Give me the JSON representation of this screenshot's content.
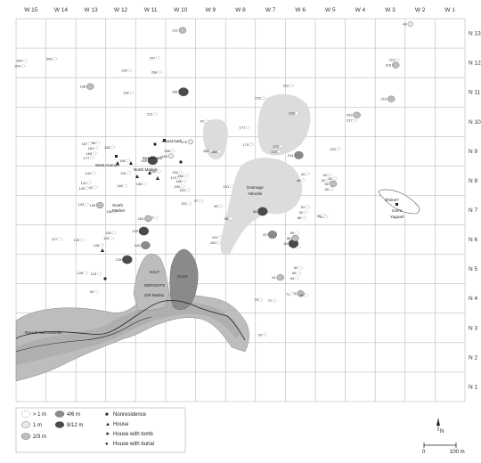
{
  "columns": [
    "W 15",
    "W 14",
    "W 13",
    "W 12",
    "W 11",
    "W 10",
    "W 9",
    "W 8",
    "W 7",
    "W 6",
    "W 5",
    "W 4",
    "W 3",
    "W 2",
    "W 1"
  ],
  "rows": [
    "N 13",
    "N 12",
    "N 11",
    "N 10",
    "N 9",
    "N 8",
    "N 7",
    "N 6",
    "N 5",
    "N 4",
    "N 3",
    "N 2",
    "N 1"
  ],
  "features": {
    "salt": "SALT",
    "deposits": "DEPOSITS",
    "zoll": "Zoll Nasha",
    "clay": "CLAY",
    "drainage1": "Drainage",
    "drainage2": "Yahoshi",
    "shrine1": "Shrine?",
    "shrine2": "Cerro",
    "shrine3": "Yagoaŕi",
    "recent": "Recent Salt Mounds",
    "west_avenue": "West Avenue",
    "north_market": "North Market",
    "south_market1": "South",
    "south_market2": "Market",
    "sweat_bath1": "sweat bath",
    "sweat_bath2": "sweat bath"
  },
  "legend": {
    "items": [
      {
        "label": "> 1 m",
        "fill": "#ffffff"
      },
      {
        "label": "1 m",
        "fill": "#e8e8e8"
      },
      {
        "label": "2/3 m",
        "fill": "#bdbdbd"
      },
      {
        "label": "4/6 m",
        "fill": "#8a8a8a"
      },
      {
        "label": "8/12 m",
        "fill": "#4a4a4a"
      }
    ],
    "symbols": [
      {
        "symbol": "■",
        "label": "Nonresidence"
      },
      {
        "symbol": "▲",
        "label": "House"
      },
      {
        "symbol": "★",
        "label": "House with tomb"
      },
      {
        "symbol": "●",
        "label": "House with burial"
      }
    ]
  },
  "north_label": "N",
  "scale": {
    "zero": "0",
    "end": "100 m"
  },
  "mounds": [
    {
      "id": "46",
      "c": "W 2",
      "r": "N 13",
      "t": 1
    },
    {
      "id": "221",
      "c": "W 10",
      "r": "N 13",
      "t": 2
    },
    {
      "id": "203",
      "c": "W 15",
      "r": "N 12",
      "t": 0
    },
    {
      "id": "204",
      "c": "W 15",
      "r": "N 12",
      "t": 0
    },
    {
      "id": "206",
      "c": "W 14",
      "r": "N 12",
      "t": 0
    },
    {
      "id": "216",
      "c": "W 3",
      "r": "N 12",
      "t": 2
    },
    {
      "id": "219",
      "c": "W 3",
      "r": "N 12",
      "t": 0
    },
    {
      "id": "207",
      "c": "W 11",
      "r": "N 12",
      "t": 0
    },
    {
      "id": "208",
      "c": "W 11",
      "r": "N 12",
      "t": 0
    },
    {
      "id": "199",
      "c": "W 12",
      "r": "N 12",
      "t": 0
    },
    {
      "id": "198",
      "c": "W 13",
      "r": "N 11",
      "t": 2
    },
    {
      "id": "192",
      "c": "W 12",
      "r": "N 11",
      "t": 0
    },
    {
      "id": "210",
      "c": "W 3",
      "r": "N 11",
      "t": 2
    },
    {
      "id": "212",
      "c": "W 6",
      "r": "N 11",
      "t": 0
    },
    {
      "id": "165",
      "c": "W 10",
      "r": "N 11",
      "t": 4
    },
    {
      "id": "215",
      "c": "W 7",
      "r": "N 11",
      "t": 0
    },
    {
      "id": "211",
      "c": "W 11",
      "r": "N 10",
      "t": 0
    },
    {
      "id": "217",
      "c": "W 4",
      "r": "N 10",
      "t": 0
    },
    {
      "id": "203",
      "c": "W 4",
      "r": "N 10",
      "t": 2
    },
    {
      "id": "218",
      "c": "W 6",
      "r": "N 10",
      "t": 0
    },
    {
      "id": "222",
      "c": "W 5",
      "r": "N 9",
      "t": 0
    },
    {
      "id": "214",
      "c": "W 6",
      "r": "N 9",
      "t": 3
    },
    {
      "id": "175",
      "c": "W 10",
      "r": "N 9",
      "t": 1
    },
    {
      "id": "184",
      "c": "W 10",
      "r": "N 9",
      "t": 1
    },
    {
      "id": "186",
      "c": "W 10",
      "r": "N 9",
      "t": 0
    },
    {
      "id": "185",
      "c": "W 11",
      "r": "N 9",
      "t": 4
    },
    {
      "id": "183",
      "c": "W 12",
      "r": "N 9",
      "t": 0
    },
    {
      "id": "169",
      "c": "W 13",
      "r": "N 9",
      "t": 0
    },
    {
      "id": "164",
      "c": "W 13",
      "r": "N 9",
      "t": 0
    },
    {
      "id": "168",
      "c": "W 13",
      "r": "N 9",
      "t": 0
    },
    {
      "id": "166",
      "c": "W 12",
      "r": "N 9",
      "t": 0
    },
    {
      "id": "167",
      "c": "W 13",
      "r": "N 9",
      "t": 0
    },
    {
      "id": "177",
      "c": "W 13",
      "r": "N 9",
      "t": 0
    },
    {
      "id": "173",
      "c": "W 7",
      "r": "N 9",
      "t": 0
    },
    {
      "id": "172",
      "c": "W 7",
      "r": "N 9",
      "t": 0
    },
    {
      "id": "174",
      "c": "W 8",
      "r": "N 9",
      "t": 0
    },
    {
      "id": "162",
      "c": "W 9",
      "r": "N 9",
      "t": 0
    },
    {
      "id": "161",
      "c": "W 8",
      "r": "N 8",
      "t": 0
    },
    {
      "id": "144",
      "c": "W 13",
      "r": "N 8",
      "t": 0
    },
    {
      "id": "142",
      "c": "W 13",
      "r": "N 8",
      "t": 0
    },
    {
      "id": "146",
      "c": "W 12",
      "r": "N 8",
      "t": 0
    },
    {
      "id": "145",
      "c": "W 13",
      "r": "N 8",
      "t": 0
    },
    {
      "id": "141",
      "c": "W 13",
      "r": "N 8",
      "t": 0
    },
    {
      "id": "191",
      "c": "W 12",
      "r": "N 8",
      "t": 0
    },
    {
      "id": "190",
      "c": "W 11",
      "r": "N 8",
      "t": 0
    },
    {
      "id": "170",
      "c": "W 10",
      "r": "N 8",
      "t": 0
    },
    {
      "id": "152",
      "c": "W 10",
      "r": "N 8",
      "t": 0
    },
    {
      "id": "150",
      "c": "W 10",
      "r": "N 8",
      "t": 0
    },
    {
      "id": "156",
      "c": "W 10",
      "r": "N 8",
      "t": 0
    },
    {
      "id": "154",
      "c": "W 10",
      "r": "N 8",
      "t": 0
    },
    {
      "id": "153",
      "c": "W 10",
      "r": "N 8",
      "t": 0
    },
    {
      "id": "138",
      "c": "W 11",
      "r": "N 8",
      "t": 0
    },
    {
      "id": "136",
      "c": "W 12",
      "r": "N 7",
      "t": 0
    },
    {
      "id": "137",
      "c": "W 11",
      "r": "N 7",
      "t": 0
    },
    {
      "id": "133",
      "c": "W 13",
      "r": "N 7",
      "t": 0
    },
    {
      "id": "160",
      "c": "W 11",
      "r": "N 7",
      "t": 2
    },
    {
      "id": "139",
      "c": "W 13",
      "r": "N 7",
      "t": 2
    },
    {
      "id": "201",
      "c": "W 10",
      "r": "N 7",
      "t": 0
    },
    {
      "id": "127",
      "c": "W 14",
      "r": "N 6",
      "t": 0
    },
    {
      "id": "128",
      "c": "W 13",
      "r": "N 6",
      "t": 0
    },
    {
      "id": "129",
      "c": "W 13",
      "r": "N 6",
      "t": 0
    },
    {
      "id": "131",
      "c": "W 12",
      "r": "N 6",
      "t": 0
    },
    {
      "id": "130",
      "c": "W 12",
      "r": "N 6",
      "t": 0
    },
    {
      "id": "135",
      "c": "W 11",
      "r": "N 6",
      "t": 4
    },
    {
      "id": "140",
      "c": "W 11",
      "r": "N 6",
      "t": 3
    },
    {
      "id": "126",
      "c": "W 13",
      "r": "N 5",
      "t": 0
    },
    {
      "id": "125",
      "c": "W 12",
      "r": "N 5",
      "t": 4
    },
    {
      "id": "123",
      "c": "W 13",
      "r": "N 5",
      "t": 0
    },
    {
      "id": "100",
      "c": "W 9",
      "r": "N 6",
      "t": 0
    },
    {
      "id": "101",
      "c": "W 9",
      "r": "N 6",
      "t": 0
    },
    {
      "id": "99",
      "c": "W 9",
      "r": "N 7",
      "t": 0
    },
    {
      "id": "97",
      "c": "W 9",
      "r": "N 7",
      "t": 0
    },
    {
      "id": "96",
      "c": "W 8",
      "r": "N 7",
      "t": 0
    },
    {
      "id": "87",
      "c": "W 7",
      "r": "N 6",
      "t": 3
    },
    {
      "id": "58",
      "c": "W 7",
      "r": "N 7",
      "t": 4
    },
    {
      "id": "86",
      "c": "W 6",
      "r": "N 7",
      "t": 0
    },
    {
      "id": "92",
      "c": "W 6",
      "r": "N 7",
      "t": 0
    },
    {
      "id": "51",
      "c": "W 6",
      "r": "N 7",
      "t": 0
    },
    {
      "id": "41",
      "c": "W 5",
      "r": "N 7",
      "t": 0
    },
    {
      "id": "44",
      "c": "W 6",
      "r": "N 8",
      "t": 0
    },
    {
      "id": "42",
      "c": "W 5",
      "r": "N 8",
      "t": 0
    },
    {
      "id": "43",
      "c": "W 5",
      "r": "N 8",
      "t": 0
    },
    {
      "id": "45",
      "c": "W 5",
      "r": "N 8",
      "t": 0
    },
    {
      "id": "80",
      "c": "W 5",
      "r": "N 8",
      "t": 2
    },
    {
      "id": "40",
      "c": "W 5",
      "r": "N 8",
      "t": 0
    },
    {
      "id": "46",
      "c": "W 6",
      "r": "N 8",
      "t": 0
    },
    {
      "id": "39",
      "c": "W 5",
      "r": "N 7",
      "t": 0
    },
    {
      "id": "84",
      "c": "W 6",
      "r": "N 6",
      "t": 4
    },
    {
      "id": "88",
      "c": "W 6",
      "r": "N 6",
      "t": 2
    },
    {
      "id": "89",
      "c": "W 6",
      "r": "N 6",
      "t": 0
    },
    {
      "id": "57",
      "c": "W 6",
      "r": "N 6",
      "t": 0
    },
    {
      "id": "64",
      "c": "W 6",
      "r": "N 5",
      "t": 0
    },
    {
      "id": "59",
      "c": "W 6",
      "r": "N 5",
      "t": 0
    },
    {
      "id": "62",
      "c": "W 6",
      "r": "N 5",
      "t": 0
    },
    {
      "id": "61",
      "c": "W 7",
      "r": "N 5",
      "t": 2
    },
    {
      "id": "63",
      "c": "W 6",
      "r": "N 4",
      "t": 2
    },
    {
      "id": "75",
      "c": "W 7",
      "r": "N 4",
      "t": 0
    },
    {
      "id": "71",
      "c": "W 6",
      "r": "N 4",
      "t": 0
    },
    {
      "id": "72",
      "c": "W 7",
      "r": "N 4",
      "t": 0
    },
    {
      "id": "74",
      "c": "W 6",
      "r": "N 4",
      "t": 0
    },
    {
      "id": "78",
      "c": "W 7",
      "r": "N 3",
      "t": 0
    },
    {
      "id": "92",
      "c": "W 13",
      "r": "N 4",
      "t": 0
    },
    {
      "id": "78",
      "c": "W 9",
      "r": "N 10",
      "t": 0
    },
    {
      "id": "171",
      "c": "W 8",
      "r": "N 10",
      "t": 0
    },
    {
      "id": "188",
      "c": "W 9",
      "r": "N 9",
      "t": 0
    }
  ]
}
